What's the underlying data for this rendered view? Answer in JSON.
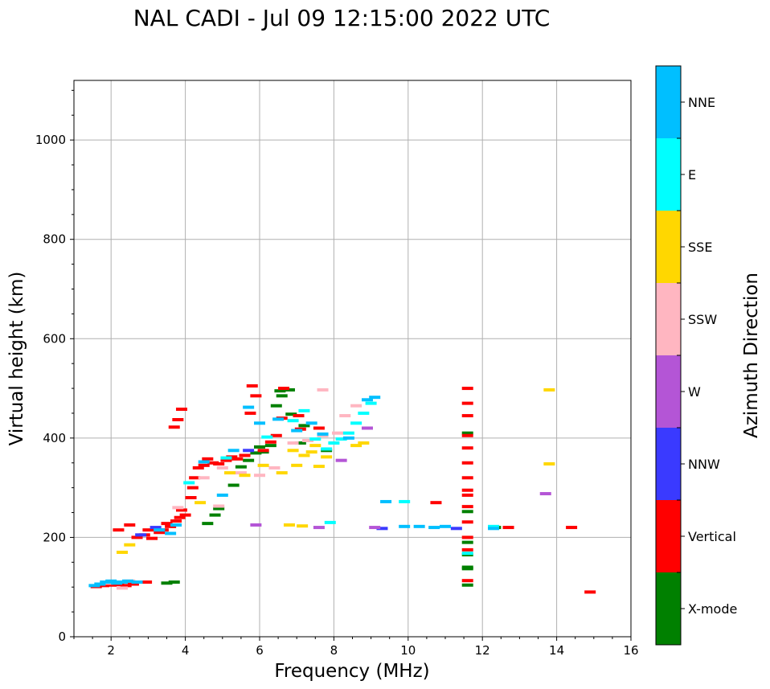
{
  "chart_data": {
    "type": "scatter",
    "title": "NAL CADI - Jul 09 12:15:00 2022 UTC",
    "xlabel": "Frequency (MHz)",
    "ylabel": "Virtual height (km)",
    "xlim": [
      1,
      16
    ],
    "ylim": [
      0,
      1120
    ],
    "xticks": [
      2,
      4,
      6,
      8,
      10,
      12,
      14,
      16
    ],
    "yticks": [
      0,
      200,
      400,
      600,
      800,
      1000
    ],
    "grid": true,
    "colorbar": {
      "label": "Azimuth Direction",
      "categories": [
        "X-mode",
        "Vertical",
        "NNW",
        "W",
        "SSW",
        "SSE",
        "E",
        "NNE"
      ],
      "colors": [
        "#008000",
        "#ff0000",
        "#3a3aff",
        "#b455d6",
        "#ffb6c1",
        "#ffd700",
        "#00ffff",
        "#00bfff"
      ]
    },
    "series": [
      {
        "name": "X-mode",
        "color": "#008000",
        "points": [
          [
            3.5,
            108
          ],
          [
            3.7,
            110
          ],
          [
            4.6,
            228
          ],
          [
            4.8,
            245
          ],
          [
            4.9,
            258
          ],
          [
            5.3,
            305
          ],
          [
            5.5,
            342
          ],
          [
            5.7,
            355
          ],
          [
            5.9,
            370
          ],
          [
            6.0,
            382
          ],
          [
            6.1,
            372
          ],
          [
            6.3,
            385
          ],
          [
            6.45,
            465
          ],
          [
            6.55,
            495
          ],
          [
            6.6,
            485
          ],
          [
            6.8,
            497
          ],
          [
            6.85,
            448
          ],
          [
            7.1,
            390
          ],
          [
            7.2,
            425
          ],
          [
            7.8,
            375
          ],
          [
            11.6,
            252
          ],
          [
            11.6,
            190
          ],
          [
            11.6,
            140
          ],
          [
            11.6,
            137
          ],
          [
            11.6,
            104
          ],
          [
            11.6,
            165
          ],
          [
            11.6,
            410
          ],
          [
            12.35,
            220
          ]
        ]
      },
      {
        "name": "Vertical",
        "color": "#ff0000",
        "points": [
          [
            1.6,
            101
          ],
          [
            1.8,
            103
          ],
          [
            2.0,
            104
          ],
          [
            2.2,
            105
          ],
          [
            2.4,
            103
          ],
          [
            2.6,
            106
          ],
          [
            2.95,
            110
          ],
          [
            2.2,
            215
          ],
          [
            2.5,
            225
          ],
          [
            2.7,
            200
          ],
          [
            2.9,
            205
          ],
          [
            3.0,
            215
          ],
          [
            3.1,
            198
          ],
          [
            3.3,
            210
          ],
          [
            3.4,
            215
          ],
          [
            3.5,
            228
          ],
          [
            3.6,
            222
          ],
          [
            3.75,
            233
          ],
          [
            3.85,
            240
          ],
          [
            3.9,
            255
          ],
          [
            4.0,
            245
          ],
          [
            4.15,
            280
          ],
          [
            4.2,
            300
          ],
          [
            4.25,
            320
          ],
          [
            4.35,
            340
          ],
          [
            4.5,
            345
          ],
          [
            4.6,
            358
          ],
          [
            4.75,
            350
          ],
          [
            4.9,
            348
          ],
          [
            5.1,
            355
          ],
          [
            5.25,
            362
          ],
          [
            5.4,
            358
          ],
          [
            5.6,
            365
          ],
          [
            5.75,
            450
          ],
          [
            5.8,
            505
          ],
          [
            5.9,
            485
          ],
          [
            6.1,
            375
          ],
          [
            6.3,
            392
          ],
          [
            6.45,
            405
          ],
          [
            6.6,
            440
          ],
          [
            6.65,
            500
          ],
          [
            7.05,
            445
          ],
          [
            7.1,
            418
          ],
          [
            7.6,
            420
          ],
          [
            3.7,
            422
          ],
          [
            3.8,
            437
          ],
          [
            3.9,
            458
          ],
          [
            10.75,
            270
          ],
          [
            11.6,
            500
          ],
          [
            11.6,
            470
          ],
          [
            11.6,
            445
          ],
          [
            11.6,
            405
          ],
          [
            11.6,
            380
          ],
          [
            11.6,
            350
          ],
          [
            11.6,
            320
          ],
          [
            11.6,
            295
          ],
          [
            11.6,
            285
          ],
          [
            11.6,
            262
          ],
          [
            11.6,
            231
          ],
          [
            11.6,
            200
          ],
          [
            11.6,
            175
          ],
          [
            11.6,
            113
          ],
          [
            12.7,
            220
          ],
          [
            14.4,
            220
          ],
          [
            14.9,
            90
          ]
        ]
      },
      {
        "name": "NNW",
        "color": "#3a3aff",
        "points": [
          [
            9.3,
            218
          ],
          [
            11.3,
            218
          ],
          [
            3.2,
            220
          ],
          [
            2.8,
            205
          ],
          [
            5.7,
            375
          ]
        ]
      },
      {
        "name": "W",
        "color": "#b455d6",
        "points": [
          [
            9.1,
            220
          ],
          [
            8.9,
            420
          ],
          [
            8.2,
            355
          ],
          [
            7.6,
            220
          ],
          [
            5.9,
            225
          ],
          [
            13.7,
            288
          ]
        ]
      },
      {
        "name": "SSW",
        "color": "#ffb6c1",
        "points": [
          [
            1.9,
            108
          ],
          [
            2.3,
            98
          ],
          [
            3.8,
            260
          ],
          [
            4.5,
            320
          ],
          [
            5.0,
            340
          ],
          [
            5.5,
            330
          ],
          [
            6.0,
            325
          ],
          [
            6.4,
            340
          ],
          [
            6.9,
            390
          ],
          [
            7.3,
            395
          ],
          [
            7.7,
            405
          ],
          [
            7.7,
            497
          ],
          [
            8.1,
            410
          ],
          [
            8.3,
            445
          ],
          [
            8.6,
            465
          ],
          [
            4.9,
            263
          ],
          [
            2.5,
            112
          ]
        ]
      },
      {
        "name": "SSE",
        "color": "#ffd700",
        "points": [
          [
            2.3,
            170
          ],
          [
            2.5,
            185
          ],
          [
            4.4,
            270
          ],
          [
            5.2,
            330
          ],
          [
            5.6,
            325
          ],
          [
            6.1,
            345
          ],
          [
            6.6,
            330
          ],
          [
            6.8,
            225
          ],
          [
            6.9,
            375
          ],
          [
            7.0,
            345
          ],
          [
            7.2,
            365
          ],
          [
            7.4,
            372
          ],
          [
            7.5,
            385
          ],
          [
            7.6,
            343
          ],
          [
            7.8,
            362
          ],
          [
            8.6,
            385
          ],
          [
            8.8,
            390
          ],
          [
            7.15,
            223
          ],
          [
            13.8,
            497
          ],
          [
            13.8,
            348
          ]
        ]
      },
      {
        "name": "E",
        "color": "#00ffff",
        "points": [
          [
            4.1,
            310
          ],
          [
            5.1,
            360
          ],
          [
            6.2,
            402
          ],
          [
            6.9,
            435
          ],
          [
            7.2,
            455
          ],
          [
            7.5,
            398
          ],
          [
            7.8,
            378
          ],
          [
            7.9,
            230
          ],
          [
            8.0,
            390
          ],
          [
            8.2,
            398
          ],
          [
            8.4,
            410
          ],
          [
            8.6,
            430
          ],
          [
            8.8,
            450
          ],
          [
            9.0,
            470
          ],
          [
            9.9,
            272
          ],
          [
            11.6,
            168
          ],
          [
            12.3,
            222
          ]
        ]
      },
      {
        "name": "NNE",
        "color": "#00bfff",
        "points": [
          [
            1.55,
            103
          ],
          [
            1.7,
            106
          ],
          [
            1.85,
            110
          ],
          [
            2.0,
            112
          ],
          [
            2.15,
            108
          ],
          [
            2.3,
            110
          ],
          [
            2.45,
            112
          ],
          [
            2.7,
            110
          ],
          [
            3.3,
            215
          ],
          [
            3.6,
            208
          ],
          [
            3.75,
            225
          ],
          [
            4.5,
            352
          ],
          [
            5.0,
            285
          ],
          [
            5.3,
            375
          ],
          [
            5.7,
            462
          ],
          [
            6.0,
            430
          ],
          [
            6.5,
            438
          ],
          [
            7.0,
            415
          ],
          [
            7.4,
            430
          ],
          [
            7.7,
            408
          ],
          [
            8.4,
            400
          ],
          [
            8.9,
            477
          ],
          [
            9.1,
            482
          ],
          [
            9.4,
            272
          ],
          [
            9.9,
            222
          ],
          [
            10.3,
            222
          ],
          [
            10.7,
            220
          ],
          [
            11.0,
            222
          ],
          [
            12.3,
            218
          ]
        ]
      }
    ]
  }
}
